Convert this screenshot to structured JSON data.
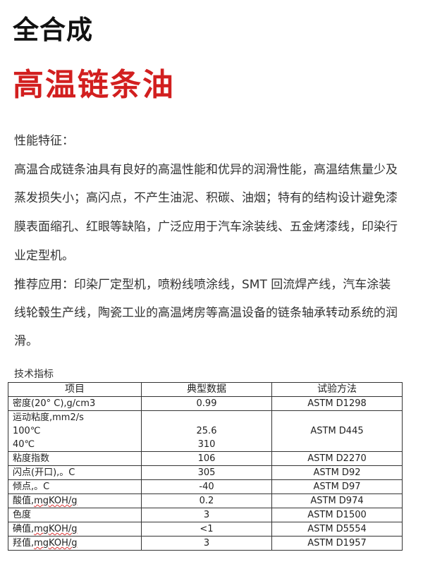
{
  "header": {
    "title": "全合成",
    "subtitle": "高温链条油",
    "subtitle_color": "#d21f1f"
  },
  "features": {
    "heading": "性能特征：",
    "text": "高温合成链条油具有良好的高温性能和优异的润滑性能，高温结焦量少及蒸发损失小；高闪点，不产生油泥、积碳、油烟；特有的结构设计避免漆膜表面缩孔、红眼等缺陷，广泛应用于汽车涂装线、五金烤漆线，印染行业定型机。"
  },
  "application": {
    "text": "推荐应用：印染厂定型机，喷粉线喷涂线，SMT 回流焊产线，汽车涂装线轮毂生产线，陶瓷工业的高温烤房等高温设备的链条轴承转动系统的润滑。"
  },
  "specs": {
    "title": "技术指标",
    "headers": [
      "项目",
      "典型数据",
      "试验方法"
    ],
    "rows": [
      {
        "item": "密度(20° C),g/cm3",
        "value": "0.99",
        "method": "ASTM D1298"
      },
      {
        "item": "运动粘度,mm2/s",
        "sub": [
          "100℃",
          "40℃"
        ],
        "values": [
          "25.6",
          "310"
        ],
        "method": "ASTM D445"
      },
      {
        "item": "粘度指数",
        "value": "106",
        "method": "ASTM D2270"
      },
      {
        "item": "闪点(开口),。C",
        "value": "305",
        "method": "ASTM D92"
      },
      {
        "item": "倾点,。C",
        "value": "-40",
        "method": "ASTM D97"
      },
      {
        "item_cn": "酸值,",
        "item_unit": "mgKOH/g",
        "value": "0.2",
        "method": "ASTM D974"
      },
      {
        "item": "色度",
        "value": "3",
        "method": "ASTM D1500"
      },
      {
        "item_cn": "碘值,",
        "item_unit": "mgKOH/g",
        "value": "<1",
        "method": "ASTM D5554"
      },
      {
        "item_cn": "羟值,",
        "item_unit": "mgKOH/g",
        "value": "3",
        "method": "ASTM D1957"
      }
    ]
  }
}
